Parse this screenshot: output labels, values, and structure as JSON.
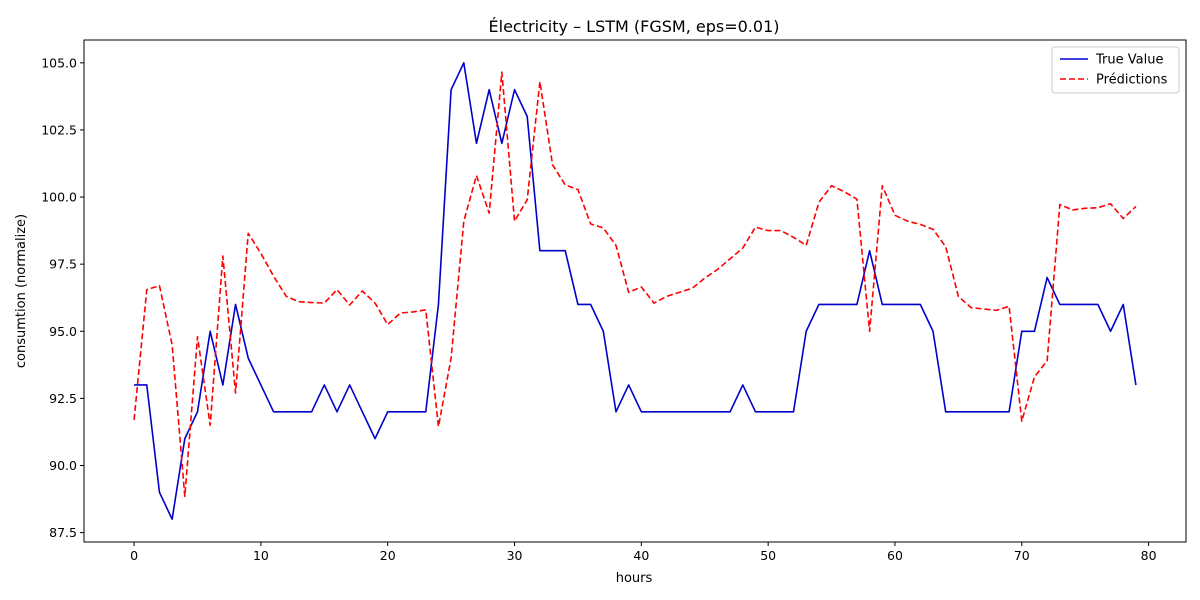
{
  "chart_data": {
    "type": "line",
    "title": "Électricity – LSTM (FGSM, eps=0.01)",
    "xlabel": "hours",
    "ylabel": "consumtion (normalize)",
    "xlim": [
      -3.95,
      82.95
    ],
    "ylim": [
      87.15,
      105.85
    ],
    "xticks": [
      0,
      10,
      20,
      30,
      40,
      50,
      60,
      70,
      80
    ],
    "yticks": [
      87.5,
      90.0,
      92.5,
      95.0,
      97.5,
      100.0,
      102.5,
      105.0
    ],
    "xtick_labels": [
      "0",
      "10",
      "20",
      "30",
      "40",
      "50",
      "60",
      "70",
      "80"
    ],
    "ytick_labels": [
      "87.5",
      "90.0",
      "92.5",
      "95.0",
      "97.5",
      "100.0",
      "102.5",
      "105.0"
    ],
    "grid": false,
    "legend_position": "top-right",
    "x": [
      0,
      1,
      2,
      3,
      4,
      5,
      6,
      7,
      8,
      9,
      10,
      11,
      12,
      13,
      14,
      15,
      16,
      17,
      18,
      19,
      20,
      21,
      22,
      23,
      24,
      25,
      26,
      27,
      28,
      29,
      30,
      31,
      32,
      33,
      34,
      35,
      36,
      37,
      38,
      39,
      40,
      41,
      42,
      43,
      44,
      45,
      46,
      47,
      48,
      49,
      50,
      51,
      52,
      53,
      54,
      55,
      56,
      57,
      58,
      59,
      60,
      61,
      62,
      63,
      64,
      65,
      66,
      67,
      68,
      69,
      70,
      71,
      72,
      73,
      74,
      75,
      76,
      77,
      78,
      79
    ],
    "series": [
      {
        "name": "True Value",
        "color": "#0000cc",
        "dash": "solid",
        "values": [
          93,
          93,
          89,
          88,
          91,
          92,
          95,
          93,
          96,
          94,
          93,
          92,
          92,
          92,
          92,
          93,
          92,
          93,
          92,
          91,
          92,
          92,
          92,
          92,
          96,
          104,
          105,
          102,
          104,
          102,
          104,
          103,
          98,
          98,
          98,
          96,
          96,
          95,
          92,
          93,
          92,
          92,
          92,
          92,
          92,
          92,
          92,
          92,
          93,
          92,
          92,
          92,
          92,
          95,
          96,
          96,
          96,
          96,
          98,
          96,
          96,
          96,
          96,
          95,
          92,
          92,
          92,
          92,
          92,
          92,
          95,
          95,
          97,
          96,
          96,
          96,
          96,
          95,
          96,
          93
        ]
      },
      {
        "name": "Prédictions",
        "color": "#ff0000",
        "dash": "dashed",
        "values": [
          91.7,
          96.55,
          96.7,
          94.5,
          88.85,
          94.8,
          91.5,
          97.8,
          92.7,
          98.65,
          97.9,
          97.05,
          96.3,
          96.1,
          96.07,
          96.05,
          96.55,
          95.98,
          96.5,
          96.05,
          95.25,
          95.68,
          95.72,
          95.8,
          91.45,
          94.0,
          99.1,
          100.8,
          99.4,
          104.65,
          99.1,
          99.9,
          104.3,
          101.2,
          100.45,
          100.28,
          99.0,
          98.85,
          98.2,
          96.45,
          96.65,
          96.05,
          96.3,
          96.45,
          96.6,
          96.98,
          97.3,
          97.7,
          98.1,
          98.88,
          98.75,
          98.75,
          98.5,
          98.2,
          99.8,
          100.42,
          100.2,
          99.92,
          95.0,
          100.42,
          99.32,
          99.1,
          98.98,
          98.8,
          98.15,
          96.3,
          95.88,
          95.83,
          95.78,
          95.93,
          91.65,
          93.3,
          93.9,
          99.72,
          99.52,
          99.58,
          99.6,
          99.75,
          99.2,
          99.65
        ]
      }
    ]
  }
}
